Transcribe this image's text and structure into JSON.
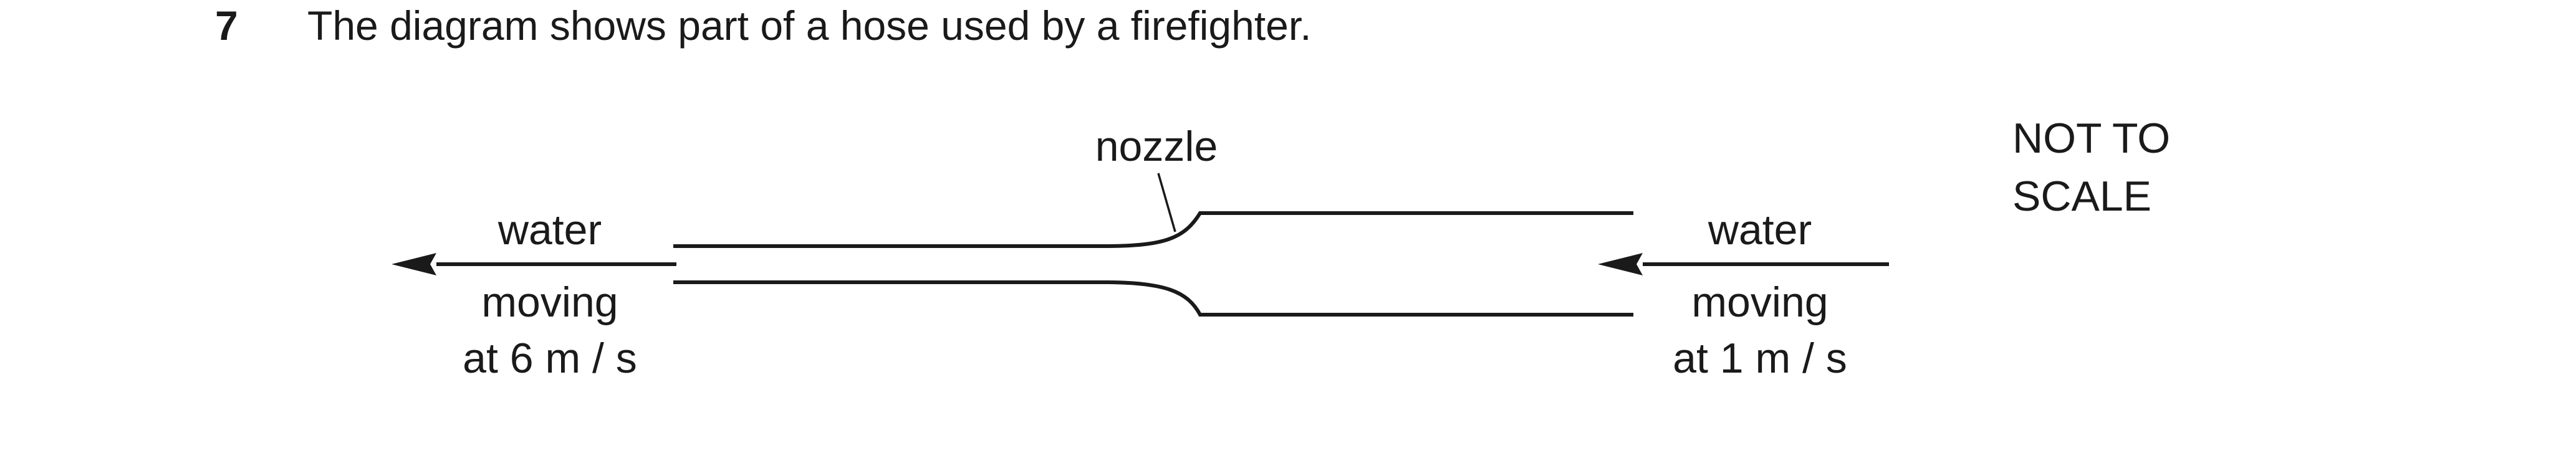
{
  "question": {
    "number": "7",
    "text": "The diagram shows part of a hose used by a firefighter."
  },
  "diagram": {
    "nozzle_label": "nozzle",
    "not_to_scale_line1": "NOT TO",
    "not_to_scale_line2": "SCALE",
    "left_flow": {
      "label_top": "water",
      "label_middle": "moving",
      "label_bottom": "at 6 m / s"
    },
    "right_flow": {
      "label_top": "water",
      "label_middle": "moving",
      "label_bottom": "at 1 m / s"
    }
  }
}
